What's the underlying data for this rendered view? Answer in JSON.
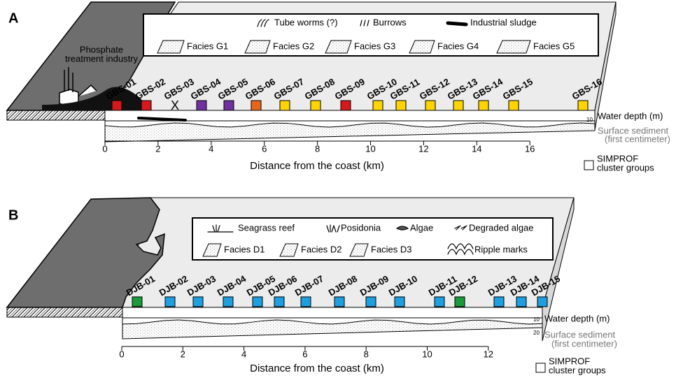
{
  "panels": [
    {
      "label": "A",
      "industry": [
        "Phosphate",
        "treatment industry"
      ],
      "legend_row1": [
        "Tube worms (?)",
        "Burrows",
        "Industrial sludge"
      ],
      "legend_row2": [
        "Facies G1",
        "Facies G2",
        "Facies G3",
        "Facies G4",
        "Facies G5"
      ],
      "stations": [
        {
          "name": "GBS-01",
          "color": "#d7191c"
        },
        {
          "name": "GBS-02",
          "color": "#d7191c"
        },
        {
          "name": "GBS-03",
          "marker": "X"
        },
        {
          "name": "GBS-04",
          "color": "#7030a0"
        },
        {
          "name": "GBS-05",
          "color": "#7030a0"
        },
        {
          "name": "GBS-06",
          "color": "#e8661a"
        },
        {
          "name": "GBS-07",
          "color": "#ffd400"
        },
        {
          "name": "GBS-08",
          "color": "#ffd400"
        },
        {
          "name": "GBS-09",
          "color": "#d7191c"
        },
        {
          "name": "GBS-10",
          "color": "#ffd400"
        },
        {
          "name": "GBS-11",
          "color": "#ffd400"
        },
        {
          "name": "GBS-12",
          "color": "#ffd400"
        },
        {
          "name": "GBS-13",
          "color": "#ffd400"
        },
        {
          "name": "GBS-14",
          "color": "#ffd400"
        },
        {
          "name": "GBS-15",
          "color": "#ffd400"
        },
        {
          "name": "GBS-16",
          "color": "#ffd400"
        }
      ],
      "depth_scale": [
        "10"
      ],
      "water_depth": "Water depth (m)",
      "surface_sediment": [
        "Surface sediment",
        "(first centimeter)"
      ],
      "x_ticks": [
        "0",
        "2",
        "4",
        "6",
        "8",
        "10",
        "12",
        "14",
        "16"
      ],
      "x_axis_label": "Distance from the coast (km)",
      "cluster_legend": [
        "SIMPROF",
        "cluster groups"
      ]
    },
    {
      "label": "B",
      "legend_row1": [
        "Seagrass reef",
        "Posidonia",
        "Algae",
        "Degraded algae"
      ],
      "legend_row2": [
        "Facies D1",
        "Facies D2",
        "Facies D3",
        "Ripple marks"
      ],
      "stations": [
        {
          "name": "DJB-01",
          "color": "#1a9a3a"
        },
        {
          "name": "DJB-02",
          "color": "#1e9fe0"
        },
        {
          "name": "DJB-03",
          "color": "#1e9fe0"
        },
        {
          "name": "DJB-04",
          "color": "#1e9fe0"
        },
        {
          "name": "DJB-05",
          "color": "#1e9fe0"
        },
        {
          "name": "DJB-06",
          "color": "#1e9fe0"
        },
        {
          "name": "DJB-07",
          "color": "#1e9fe0"
        },
        {
          "name": "DJB-08",
          "color": "#1e9fe0"
        },
        {
          "name": "DJB-09",
          "color": "#1e9fe0"
        },
        {
          "name": "DJB-10",
          "color": "#1e9fe0"
        },
        {
          "name": "DJB-11",
          "color": "#1e9fe0"
        },
        {
          "name": "DJB-12",
          "color": "#1a9a3a"
        },
        {
          "name": "DJB-13",
          "color": "#1e9fe0"
        },
        {
          "name": "DJB-14",
          "color": "#1e9fe0"
        },
        {
          "name": "DJB-15",
          "color": "#1e9fe0"
        }
      ],
      "depth_scale": [
        "10",
        "20"
      ],
      "water_depth": "Water depth (m)",
      "surface_sediment": [
        "Surface sediment",
        "(first centimeter)"
      ],
      "x_ticks": [
        "0",
        "2",
        "4",
        "6",
        "8",
        "10",
        "12"
      ],
      "x_axis_label": "Distance from the coast (km)",
      "cluster_legend": [
        "SIMPROF",
        "cluster groups"
      ]
    }
  ]
}
